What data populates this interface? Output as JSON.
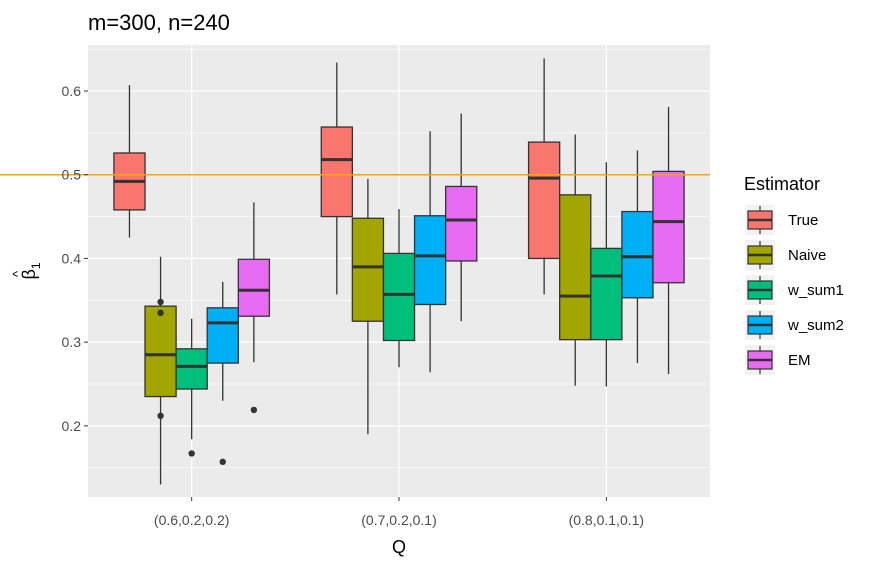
{
  "chart_data": {
    "type": "boxplot",
    "title": "m=300, n=240",
    "xlabel": "Q",
    "ylabel": "β̂1",
    "ylabel_parts": {
      "hat": "^",
      "symbol": "β",
      "subscript": "1"
    },
    "ylim": [
      0.115,
      0.655
    ],
    "yticks": [
      0.2,
      0.3,
      0.4,
      0.5,
      0.6
    ],
    "ytick_labels": [
      "0.2",
      "0.3",
      "0.4",
      "0.5",
      "0.6"
    ],
    "categories": [
      "(0.6,0.2,0.2)",
      "(0.7,0.2,0.1)",
      "(0.8,0.1,0.1)"
    ],
    "reference_line": {
      "y": 0.5,
      "color": "#FFA500"
    },
    "grid": true,
    "legend": {
      "title": "Estimator",
      "position": "right"
    },
    "series": [
      {
        "name": "True",
        "color": "#F8766D",
        "boxes": [
          {
            "min": 0.425,
            "q1": 0.458,
            "median": 0.492,
            "q3": 0.526,
            "max": 0.607,
            "outliers": []
          },
          {
            "min": 0.357,
            "q1": 0.45,
            "median": 0.518,
            "q3": 0.557,
            "max": 0.634,
            "outliers": []
          },
          {
            "min": 0.357,
            "q1": 0.4,
            "median": 0.496,
            "q3": 0.539,
            "max": 0.639,
            "outliers": []
          }
        ]
      },
      {
        "name": " Naive",
        "color": "#A3A500",
        "boxes": [
          {
            "min": 0.13,
            "q1": 0.235,
            "median": 0.285,
            "q3": 0.343,
            "max": 0.402,
            "outliers": [
              0.348,
              0.335,
              0.212
            ]
          },
          {
            "min": 0.19,
            "q1": 0.325,
            "median": 0.39,
            "q3": 0.448,
            "max": 0.495,
            "outliers": []
          },
          {
            "min": 0.248,
            "q1": 0.303,
            "median": 0.355,
            "q3": 0.476,
            "max": 0.548,
            "outliers": []
          }
        ]
      },
      {
        "name": "w_sum1",
        "color": "#00BF7D",
        "boxes": [
          {
            "min": 0.184,
            "q1": 0.244,
            "median": 0.271,
            "q3": 0.292,
            "max": 0.328,
            "outliers": [
              0.167
            ]
          },
          {
            "min": 0.27,
            "q1": 0.302,
            "median": 0.357,
            "q3": 0.406,
            "max": 0.459,
            "outliers": []
          },
          {
            "min": 0.247,
            "q1": 0.303,
            "median": 0.379,
            "q3": 0.412,
            "max": 0.515,
            "outliers": []
          }
        ]
      },
      {
        "name": "w_sum2",
        "color": "#00B0F6",
        "boxes": [
          {
            "min": 0.23,
            "q1": 0.275,
            "median": 0.323,
            "q3": 0.341,
            "max": 0.372,
            "outliers": [
              0.157
            ]
          },
          {
            "min": 0.264,
            "q1": 0.345,
            "median": 0.403,
            "q3": 0.451,
            "max": 0.552,
            "outliers": []
          },
          {
            "min": 0.275,
            "q1": 0.353,
            "median": 0.402,
            "q3": 0.456,
            "max": 0.529,
            "outliers": []
          }
        ]
      },
      {
        "name": "EM",
        "color": "#E76BF3",
        "boxes": [
          {
            "min": 0.276,
            "q1": 0.331,
            "median": 0.362,
            "q3": 0.399,
            "max": 0.467,
            "outliers": [
              0.219
            ]
          },
          {
            "min": 0.325,
            "q1": 0.397,
            "median": 0.446,
            "q3": 0.486,
            "max": 0.573,
            "outliers": []
          },
          {
            "min": 0.262,
            "q1": 0.371,
            "median": 0.444,
            "q3": 0.504,
            "max": 0.581,
            "outliers": []
          }
        ]
      }
    ]
  }
}
